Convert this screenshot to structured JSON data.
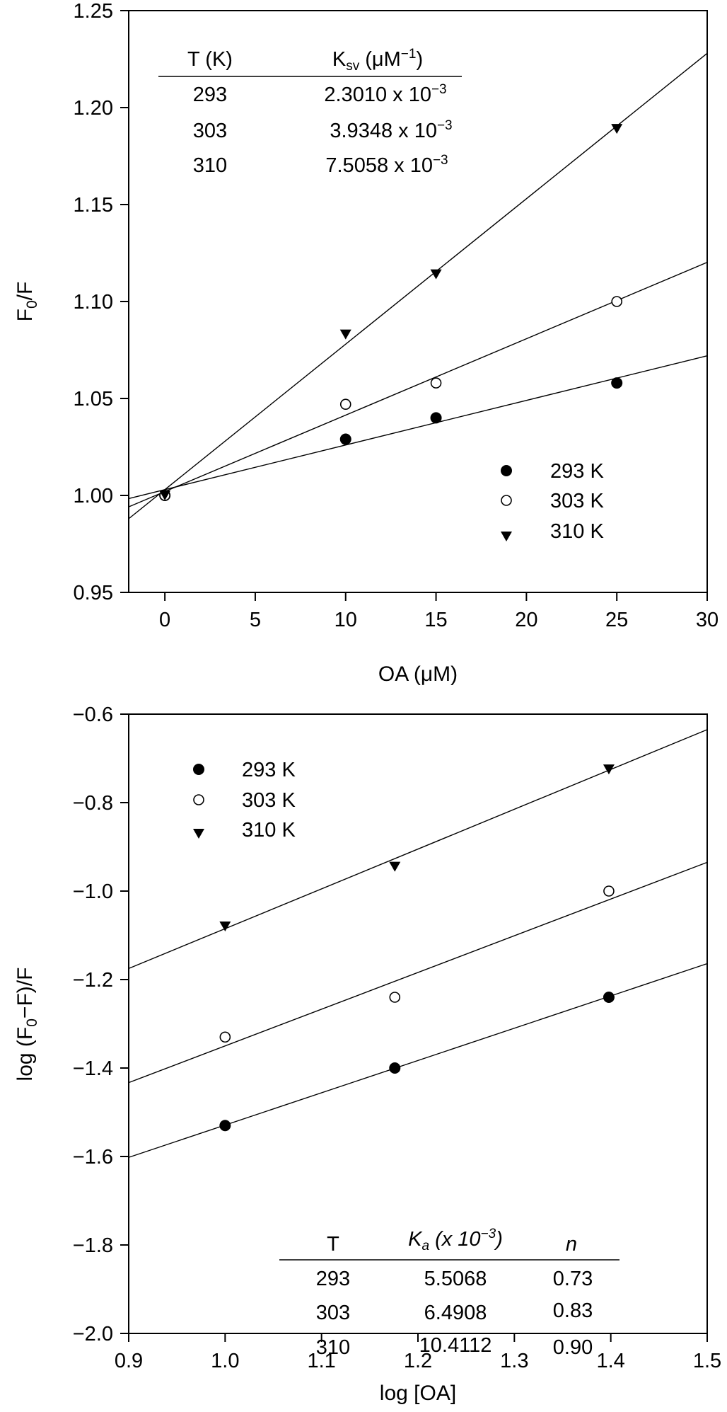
{
  "chart_data": [
    {
      "type": "scatter",
      "xlabel": "OA (μM)",
      "ylabel_main": "F",
      "ylabel_sub": "0",
      "ylabel_tail": "/F",
      "xlim": [
        -2,
        30
      ],
      "ylim": [
        0.95,
        1.25
      ],
      "x_ticks": [
        0,
        5,
        10,
        15,
        20,
        25,
        30
      ],
      "y_ticks": [
        0.95,
        1.0,
        1.05,
        1.1,
        1.15,
        1.2,
        1.25
      ],
      "x_tick_labels": [
        "0",
        "5",
        "10",
        "15",
        "20",
        "25",
        "30"
      ],
      "y_tick_labels": [
        "0.95",
        "1.00",
        "1.05",
        "1.10",
        "1.15",
        "1.20",
        "1.25"
      ],
      "legend_position": "lower-right",
      "series": [
        {
          "name": "293 K",
          "marker": "filled-circle",
          "x": [
            0,
            10,
            15,
            25
          ],
          "y": [
            1.0,
            1.029,
            1.04,
            1.058
          ],
          "fit": {
            "slope": 0.0023,
            "intercept": 1.003
          }
        },
        {
          "name": "303 K",
          "marker": "open-circle",
          "x": [
            0,
            10,
            15,
            25
          ],
          "y": [
            1.0,
            1.047,
            1.058,
            1.1
          ],
          "fit": {
            "slope": 0.00394,
            "intercept": 1.002
          }
        },
        {
          "name": "310 K",
          "marker": "filled-triangle-down",
          "x": [
            0,
            10,
            15,
            25
          ],
          "y": [
            1.0,
            1.083,
            1.114,
            1.189
          ],
          "fit": {
            "slope": 0.0075,
            "intercept": 1.003
          }
        }
      ],
      "inset_table": {
        "headers": [
          "T (K)",
          "K",
          "sv",
          " (μM",
          "−1",
          ")"
        ],
        "rows": [
          [
            "293",
            "2.3010 x 10",
            "−3"
          ],
          [
            "303",
            "3.9348 x 10",
            "−3"
          ],
          [
            "310",
            "7.5058 x 10",
            "−3"
          ]
        ]
      }
    },
    {
      "type": "scatter",
      "xlabel": "log [OA]",
      "ylabel_main": "log (F",
      "ylabel_sub": "0",
      "ylabel_tail": "−F)/F",
      "xlim": [
        0.9,
        1.5
      ],
      "ylim": [
        -2.0,
        -0.6
      ],
      "x_ticks": [
        0.9,
        1.0,
        1.1,
        1.2,
        1.3,
        1.4,
        1.5
      ],
      "y_ticks": [
        -2.0,
        -1.8,
        -1.6,
        -1.4,
        -1.2,
        -1.0,
        -0.8,
        -0.6
      ],
      "x_tick_labels": [
        "0.9",
        "1.0",
        "1.1",
        "1.2",
        "1.3",
        "1.4",
        "1.5"
      ],
      "y_tick_labels": [
        "−2.0",
        "−1.8",
        "−1.6",
        "−1.4",
        "−1.2",
        "−1.0",
        "−0.8",
        "−0.6"
      ],
      "legend_position": "top-left",
      "series": [
        {
          "name": "293 K",
          "marker": "filled-circle",
          "x": [
            1.0,
            1.176,
            1.398
          ],
          "y": [
            -1.53,
            -1.4,
            -1.24
          ],
          "fit": {
            "slope": 0.73,
            "intercept": -2.259
          }
        },
        {
          "name": "303 K",
          "marker": "open-circle",
          "x": [
            1.0,
            1.176,
            1.398
          ],
          "y": [
            -1.33,
            -1.24,
            -1.0
          ],
          "fit": {
            "slope": 0.83,
            "intercept": -2.18
          }
        },
        {
          "name": "310 K",
          "marker": "filled-triangle-down",
          "x": [
            1.0,
            1.176,
            1.398
          ],
          "y": [
            -1.08,
            -0.945,
            -0.725
          ],
          "fit": {
            "slope": 0.9,
            "intercept": -1.985
          }
        }
      ],
      "inset_table": {
        "headers": [
          "T",
          "K",
          "a",
          " (x 10",
          "−3",
          ")",
          "n"
        ],
        "rows": [
          [
            "293",
            "5.5068",
            "0.73"
          ],
          [
            "303",
            "6.4908",
            "0.83"
          ],
          [
            "310",
            "10.4112",
            "0.90"
          ]
        ]
      }
    }
  ]
}
